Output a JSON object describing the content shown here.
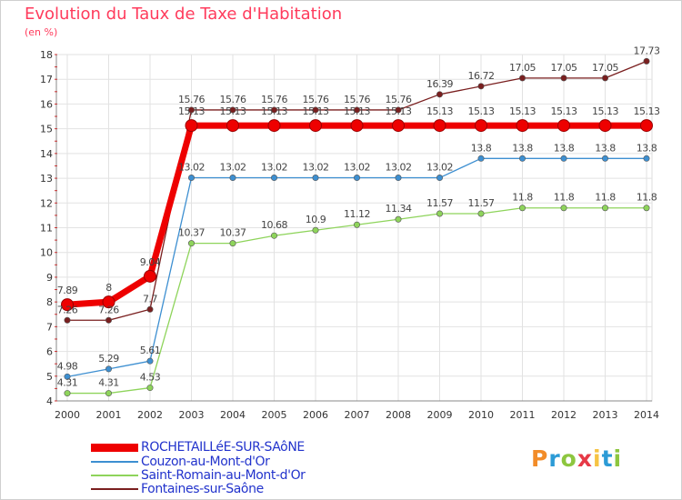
{
  "title": "Evolution du Taux de Taxe d'Habitation",
  "unit": "(en %)",
  "brand": {
    "letters": [
      "P",
      "r",
      "o",
      "x",
      "i",
      "t",
      "i"
    ],
    "colors": [
      "#f28c28",
      "#2c9bd6",
      "#8dc63f",
      "#e63946",
      "#f6c343",
      "#2c9bd6",
      "#8dc63f"
    ]
  },
  "chart_data": {
    "type": "line",
    "title": "Evolution du Taux de Taxe d'Habitation",
    "ylabel": "(en %)",
    "xlabel": "",
    "x": [
      2000,
      2001,
      2002,
      2003,
      2004,
      2005,
      2006,
      2007,
      2008,
      2009,
      2010,
      2011,
      2012,
      2013,
      2014
    ],
    "ylim": [
      4,
      18
    ],
    "yticks": [
      4,
      5,
      6,
      7,
      8,
      9,
      10,
      11,
      12,
      13,
      14,
      15,
      16,
      17,
      18
    ],
    "grid": true,
    "legend_position": "bottom-left",
    "series": [
      {
        "name": "ROCHETAILLéE-SUR-SAôNE",
        "color": "#ee0000",
        "values": [
          7.89,
          8,
          9.04,
          15.13,
          15.13,
          15.13,
          15.13,
          15.13,
          15.13,
          15.13,
          15.13,
          15.13,
          15.13,
          15.13,
          15.13
        ],
        "labels": [
          "7.89",
          "8",
          "9.04",
          "15.13",
          "15.13",
          "15.13",
          "15.13",
          "15.13",
          "15.13",
          "15.13",
          "15.13",
          "15.13",
          "15.13",
          "15.13",
          "15.13"
        ],
        "label_offset": "above"
      },
      {
        "name": "Couzon-au-Mont-d'Or",
        "color": "#3d8fd1",
        "values": [
          4.98,
          5.29,
          5.61,
          13.02,
          13.02,
          13.02,
          13.02,
          13.02,
          13.02,
          13.02,
          13.8,
          13.8,
          13.8,
          13.8,
          13.8
        ],
        "labels": [
          "4.98",
          "5.29",
          "5.61",
          "13.02",
          "13.02",
          "13.02",
          "13.02",
          "13.02",
          "13.02",
          "13.02",
          "13.8",
          "13.8",
          "13.8",
          "13.8",
          "13.8"
        ],
        "label_offset": "above"
      },
      {
        "name": "Saint-Romain-au-Mont-d'Or",
        "color": "#8ed45b",
        "values": [
          4.31,
          4.31,
          4.53,
          10.37,
          10.37,
          10.68,
          10.9,
          11.12,
          11.34,
          11.57,
          11.57,
          11.8,
          11.8,
          11.8,
          11.8
        ],
        "labels": [
          "4.31",
          "4.31",
          "4.53",
          "10.37",
          "10.37",
          "10.68",
          "10.9",
          "11.12",
          "11.34",
          "11.57",
          "11.57",
          "11.8",
          "11.8",
          "11.8",
          "11.8"
        ],
        "label_offset": "above"
      },
      {
        "name": "Fontaines-sur-Saône",
        "color": "#7a1f1f",
        "values": [
          7.26,
          7.26,
          7.7,
          15.76,
          15.76,
          15.76,
          15.76,
          15.76,
          15.76,
          16.39,
          16.72,
          17.05,
          17.05,
          17.05,
          17.73
        ],
        "labels": [
          "7.26",
          "7.26",
          "7.7",
          "15.76",
          "15.76",
          "15.76",
          "15.76",
          "15.76",
          "15.76",
          "16.39",
          "16.72",
          "17.05",
          "17.05",
          "17.05",
          "17.73"
        ],
        "label_offset": "above"
      }
    ]
  }
}
